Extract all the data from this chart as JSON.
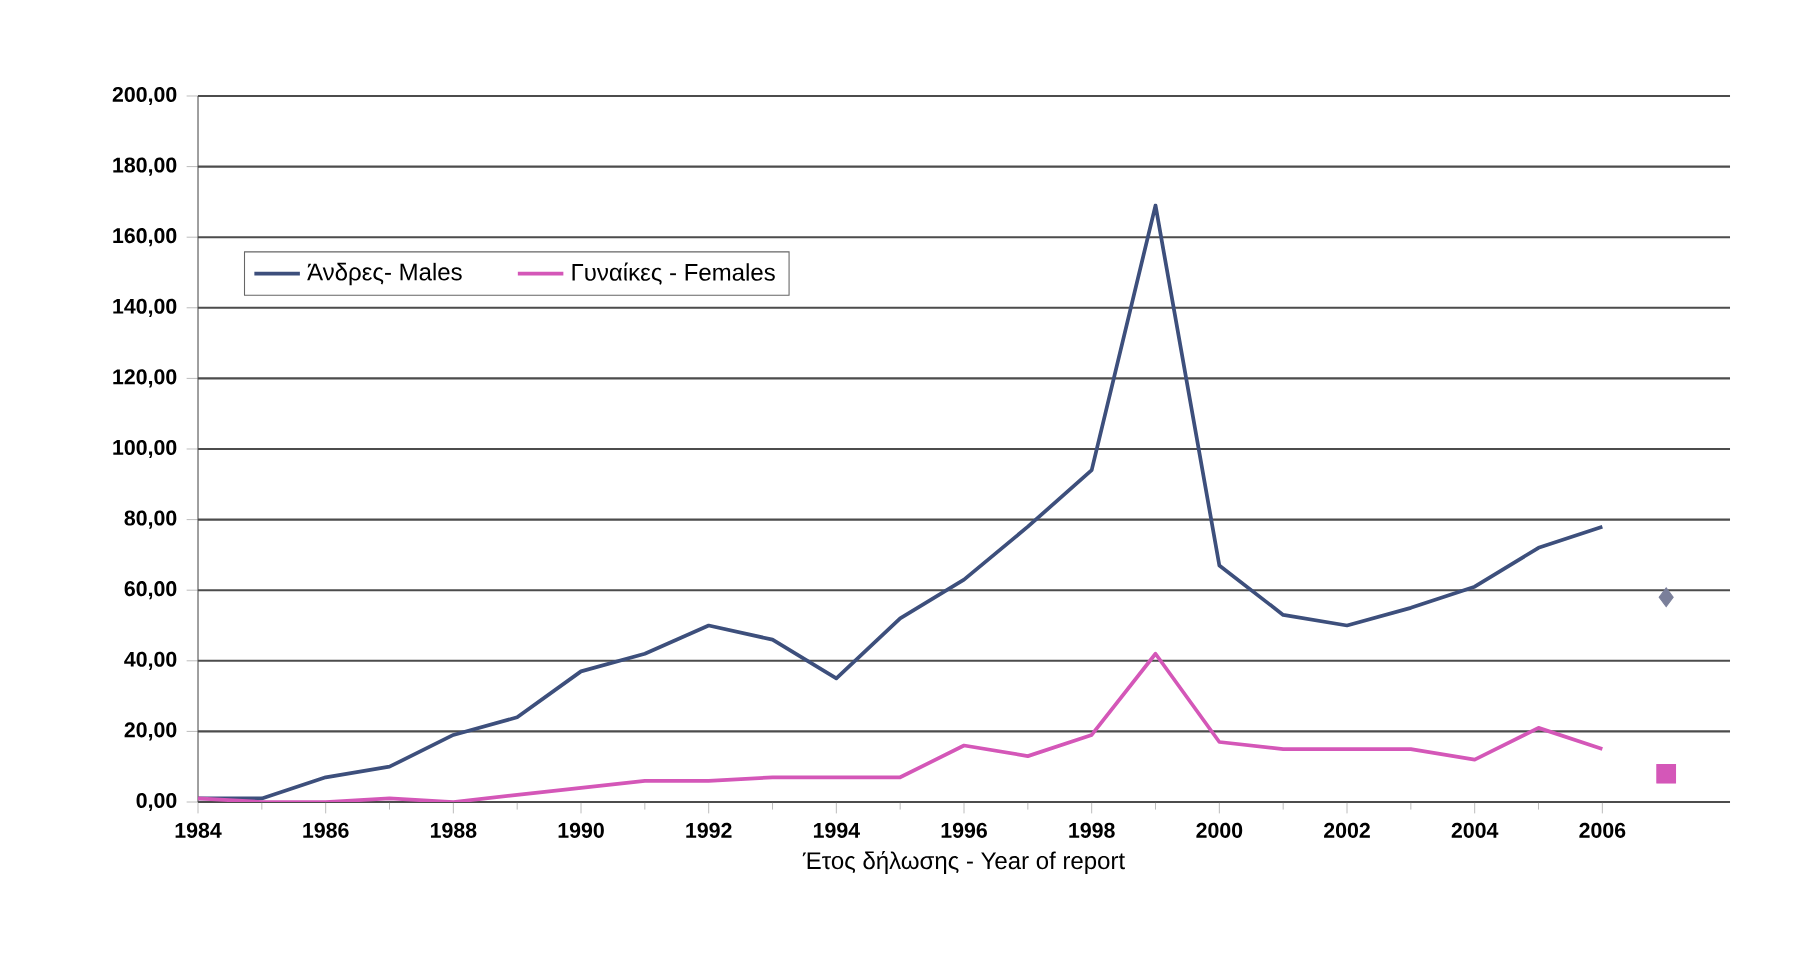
{
  "chart_data": {
    "type": "line",
    "xlabel": "Έτος δήλωσης - Year of report",
    "x": [
      1984,
      1985,
      1986,
      1987,
      1988,
      1989,
      1990,
      1991,
      1992,
      1993,
      1994,
      1995,
      1996,
      1997,
      1998,
      1999,
      2000,
      2001,
      2002,
      2003,
      2004,
      2005,
      2006
    ],
    "xlim": [
      1984,
      2008
    ],
    "xticks": [
      1984,
      1986,
      1988,
      1990,
      1992,
      1994,
      1996,
      1998,
      2000,
      2002,
      2004,
      2006
    ],
    "ylim": [
      0,
      200
    ],
    "yticks": [
      {
        "value": 0,
        "label": "0,00"
      },
      {
        "value": 20,
        "label": "20,00"
      },
      {
        "value": 40,
        "label": "40,00"
      },
      {
        "value": 60,
        "label": "60,00"
      },
      {
        "value": 80,
        "label": "80,00"
      },
      {
        "value": 100,
        "label": "100,00"
      },
      {
        "value": 120,
        "label": "120,00"
      },
      {
        "value": 140,
        "label": "140,00"
      },
      {
        "value": 160,
        "label": "160,00"
      },
      {
        "value": 180,
        "label": "180,00"
      },
      {
        "value": 200,
        "label": "200,00"
      }
    ],
    "grid": "y",
    "legend": "top left",
    "line_style": "solid",
    "series": [
      {
        "name": "Άνδρες- Males",
        "color": "#3d4f7c",
        "values": [
          1,
          1,
          7,
          10,
          19,
          24,
          37,
          42,
          50,
          46,
          35,
          52,
          63,
          78,
          94,
          169,
          67,
          53,
          50,
          55,
          61,
          72,
          78
        ]
      },
      {
        "name": "Γυναίκες - Females",
        "color": "#d457b8",
        "values": [
          1,
          0,
          0,
          1,
          0,
          2,
          4,
          6,
          6,
          7,
          7,
          7,
          16,
          13,
          19,
          42,
          17,
          15,
          15,
          15,
          12,
          21,
          15
        ]
      },
      {
        "type": "scatter",
        "marker": "diamond",
        "color": "#7a7f9a",
        "x": [
          2007
        ],
        "values": [
          58
        ]
      },
      {
        "type": "scatter",
        "marker": "square",
        "color": "#d457b8",
        "x": [
          2007
        ],
        "values": [
          8
        ]
      }
    ]
  }
}
